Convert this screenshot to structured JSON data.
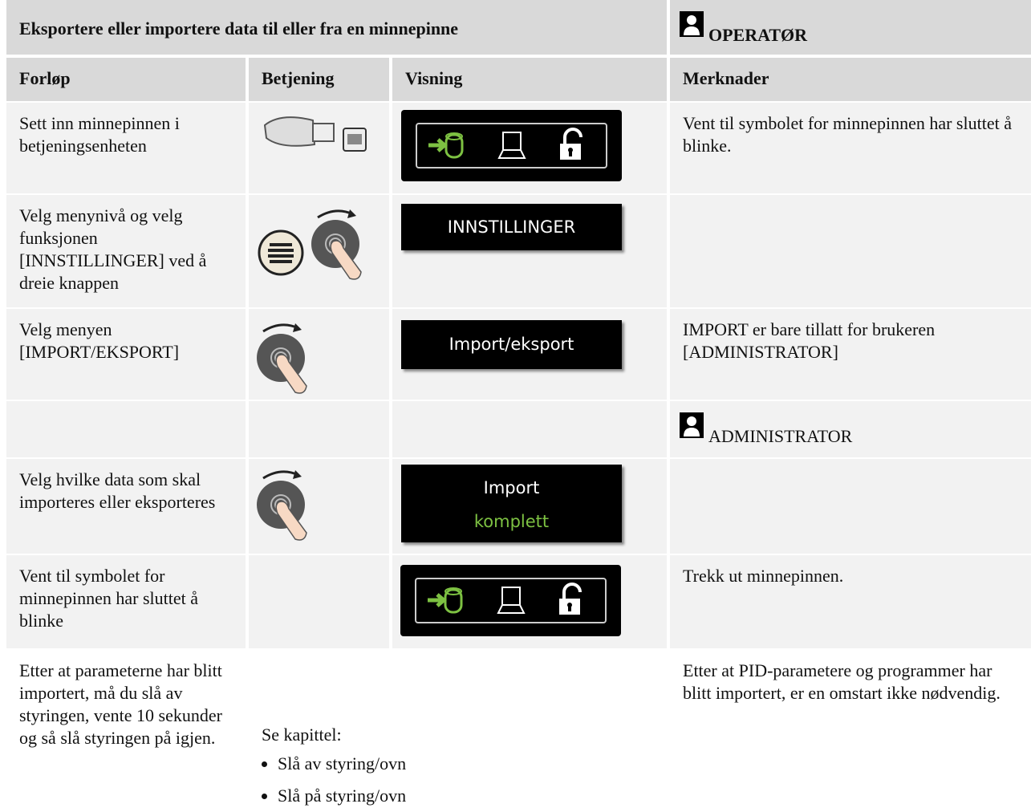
{
  "header": {
    "title": "Eksportere eller importere data til eller fra en minnepinne",
    "role": "OPERATØR"
  },
  "columns": [
    "Forløp",
    "Betjening",
    "Visning",
    "Merknader"
  ],
  "rows": [
    {
      "step": "Sett inn minnepinnen i betjeningsenheten",
      "note": "Vent til symbolet for minnepinnen har sluttet å blinke."
    },
    {
      "step": "Velg menynivå og velg funksjonen [INNSTILLINGER] ved å dreie knappen",
      "display": [
        "INNSTILLINGER"
      ]
    },
    {
      "step": "Velg menyen [IMPORT/EKSPORT]",
      "display": [
        "Import/eksport"
      ],
      "note": "IMPORT er bare tillatt for brukeren [ADMINISTRATOR]"
    },
    {
      "role": "ADMINISTRATOR"
    },
    {
      "step": "Velg hvilke data som skal importeres eller eksporteres",
      "display": [
        "Import",
        "komplett"
      ]
    },
    {
      "step": "Vent til symbolet for minnepinnen har sluttet å blinke",
      "note": "Trekk ut minnepinnen."
    },
    {
      "step": "Etter at parameterne har blitt importert, må du slå av styringen, vente 10 sekunder og så slå styringen på igjen.",
      "reference": {
        "label": "Se kapittel:",
        "items": [
          "Slå av styring/ovn",
          "Slå på styring/ovn"
        ]
      },
      "note": "Etter at PID-parametere og programmer har blitt importert, er en omstart ikke nødvendig."
    }
  ]
}
